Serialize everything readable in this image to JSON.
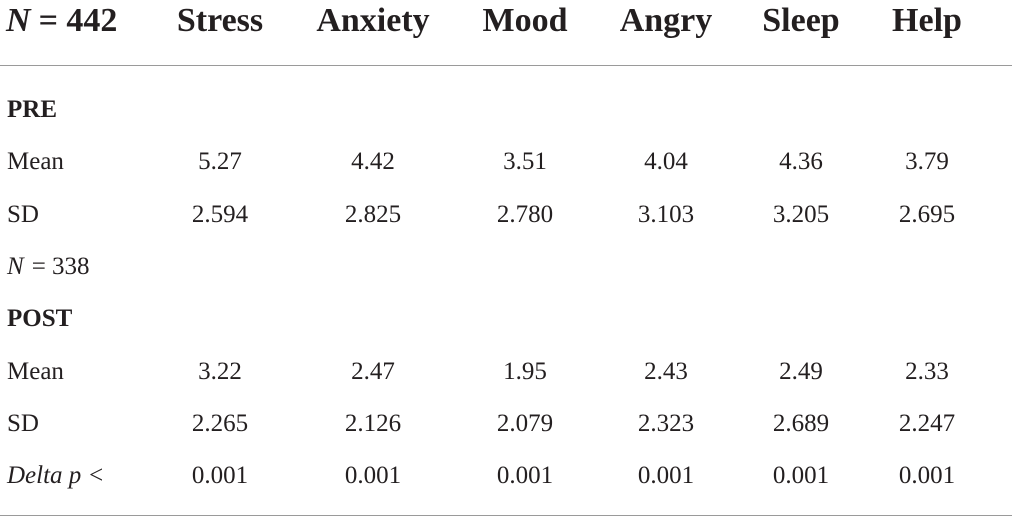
{
  "header": {
    "corner": {
      "italic": "N",
      "rest": "= 442"
    },
    "columns": [
      "Stress",
      "Anxiety",
      "Mood",
      "Angry",
      "Sleep",
      "Help"
    ]
  },
  "rows": [
    {
      "section": "PRE"
    },
    {
      "label": "Mean",
      "values": [
        "5.27",
        "4.42",
        "3.51",
        "4.04",
        "4.36",
        "3.79"
      ]
    },
    {
      "label": "SD",
      "values": [
        "2.594",
        "2.825",
        "2.780",
        "3.103",
        "3.205",
        "2.695"
      ]
    },
    {
      "italic": "N",
      "rest": "= 338"
    },
    {
      "section": "POST"
    },
    {
      "label": "Mean",
      "values": [
        "3.22",
        "2.47",
        "1.95",
        "2.43",
        "2.49",
        "2.33"
      ]
    },
    {
      "label": "SD",
      "values": [
        "2.265",
        "2.126",
        "2.079",
        "2.323",
        "2.689",
        "2.247"
      ]
    },
    {
      "italic_label": "Delta p <",
      "values": [
        "0.001",
        "0.001",
        "0.001",
        "0.001",
        "0.001",
        "0.001"
      ]
    }
  ]
}
